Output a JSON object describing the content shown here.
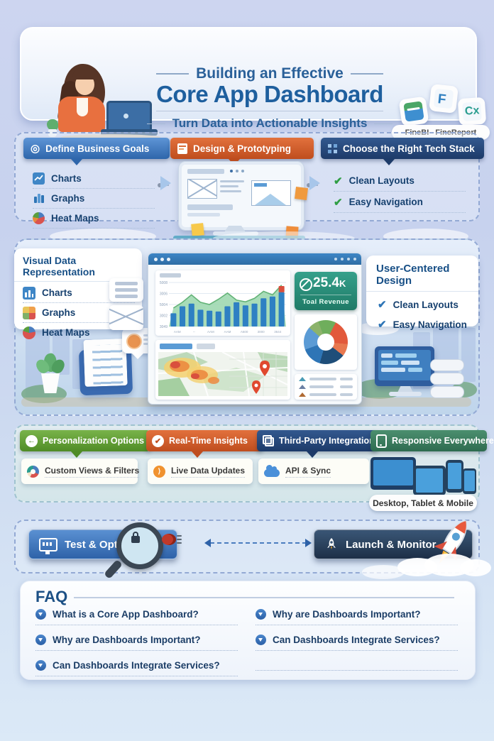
{
  "header": {
    "title_top": "Building an Effective",
    "title_main": "Core App Dashboard",
    "subtitle": "Turn Data into Actionable Insights",
    "brands": {
      "left": "FineBI",
      "right": "FineReport"
    }
  },
  "steps": {
    "goals": {
      "title": "Define Business Goals",
      "items": [
        {
          "icon": "line-chart-icon",
          "label": "Charts"
        },
        {
          "icon": "bar-chart-icon",
          "label": "Graphs"
        },
        {
          "icon": "pie-chart-icon",
          "label": "Heat Maps"
        }
      ]
    },
    "design": {
      "title": "Design & Prototyping"
    },
    "tech": {
      "title": "Choose the Right Tech Stack",
      "items": [
        {
          "label": "Clean Layouts"
        },
        {
          "label": "Easy Navigation"
        }
      ]
    }
  },
  "visual": {
    "left_card": {
      "title": "Visual Data Representation",
      "items": [
        {
          "icon": "chart-tile-icon",
          "label": "Charts"
        },
        {
          "icon": "heat-grid-icon",
          "label": "Graphs"
        },
        {
          "icon": "pie-icon",
          "label": "Heat Maps"
        }
      ]
    },
    "kpi": {
      "value": "25.4",
      "unit": "K",
      "label": "Toal Revenue"
    },
    "user_card": {
      "title": "User-Centered Design",
      "items": [
        {
          "label": "Clean Layouts"
        },
        {
          "label": "Easy Navigation"
        }
      ]
    }
  },
  "features": [
    {
      "title": "Personalization Options",
      "sub": "Custom Views & Filters",
      "color_top": "#79b34a",
      "color_bottom": "#4f8c26"
    },
    {
      "title": "Real-Time Insights",
      "sub": "Live Data Updates",
      "color_top": "#e2713d",
      "color_bottom": "#bf4d1e"
    },
    {
      "title": "Third-Party Integration",
      "sub": "API & Sync",
      "color_top": "#33598f",
      "color_bottom": "#1d3b69"
    },
    {
      "title": "Responsive Everywhere",
      "sub": "Desktop, Tablet & Mobile",
      "color_top": "#4b8f6f",
      "color_bottom": "#2e6b4f"
    }
  ],
  "actions": {
    "test": "Test & Optimize",
    "launch": "Launch & Monitor"
  },
  "faq": {
    "title": "FAQ",
    "left": [
      "What is a Core App Dashboard?",
      "Why are Dashboards Important?",
      "Can Dashboards Integrate Services?"
    ],
    "right": [
      "Why are Dashboards Important?",
      "Can Dashboards Integrate Services?"
    ]
  },
  "chart_data": [
    {
      "id": "dashboard-combo-chart",
      "type": "bar",
      "title": "",
      "xlabel": "",
      "ylabel": "",
      "ylim": [
        0,
        100
      ],
      "grid": true,
      "y_ticks": [
        "5008",
        "3006",
        "5004",
        "3002",
        "3049"
      ],
      "x_ticks": [
        "AAM",
        "--",
        "AAM",
        "AAM",
        "A600",
        "3000",
        "3644"
      ],
      "series": [
        {
          "name": "bars",
          "type": "bar",
          "color": "#2e80c3",
          "values": [
            30,
            46,
            52,
            38,
            36,
            34,
            46,
            55,
            48,
            52,
            64,
            68,
            78
          ]
        },
        {
          "name": "area",
          "type": "area",
          "color": "#9fd8b0",
          "line_color": "#63b377",
          "values": [
            42,
            55,
            72,
            55,
            50,
            62,
            76,
            60,
            56,
            64,
            80,
            72,
            94
          ]
        },
        {
          "name": "highlight-cap",
          "type": "bar-cap",
          "color": "#d94f3d",
          "index": 12,
          "value": 14
        }
      ]
    },
    {
      "id": "dashboard-donut-chart",
      "type": "pie",
      "slices": [
        {
          "color": "#6fae5c",
          "value": 13
        },
        {
          "color": "#e2593b",
          "value": 19
        },
        {
          "color": "#e8784f",
          "value": 9
        },
        {
          "color": "#1f4e79",
          "value": 19
        },
        {
          "color": "#2e75b6",
          "value": 15
        },
        {
          "color": "#5b9bd5",
          "value": 17
        },
        {
          "color": "#8cb36b",
          "value": 8
        }
      ]
    }
  ]
}
